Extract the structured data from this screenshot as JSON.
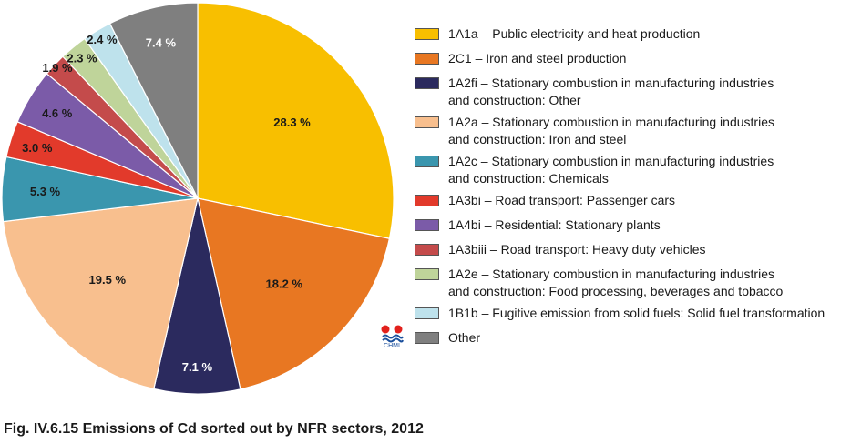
{
  "chart_data": {
    "type": "pie",
    "title": "Fig. IV.6.15  Emissions of Cd sorted out by NFR sectors, 2012",
    "slices": [
      {
        "label_line1": "1A1a – Public electricity and heat production",
        "label_line2": "",
        "value": 28.3,
        "pct_label": "28.3 %",
        "color": "#F8BF00",
        "text_color": "#1a1a1a"
      },
      {
        "label_line1": "2C1 – Iron and steel production",
        "label_line2": "",
        "value": 18.2,
        "pct_label": "18.2 %",
        "color": "#E87722",
        "text_color": "#1a1a1a"
      },
      {
        "label_line1": "1A2fi – Stationary combustion in manufacturing industries",
        "label_line2": "and construction: Other",
        "value": 7.1,
        "pct_label": "7.1 %",
        "color": "#2B2A5E",
        "text_color": "#ffffff"
      },
      {
        "label_line1": "1A2a – Stationary combustion in manufacturing industries",
        "label_line2": "and construction: Iron and steel",
        "value": 19.5,
        "pct_label": "19.5 %",
        "color": "#F8BF8E",
        "text_color": "#1a1a1a"
      },
      {
        "label_line1": "1A2c – Stationary combustion in manufacturing industries",
        "label_line2": "and construction: Chemicals",
        "value": 5.3,
        "pct_label": "5.3 %",
        "color": "#3A96AE",
        "text_color": "#1a1a1a"
      },
      {
        "label_line1": "1A3bi – Road transport: Passenger cars",
        "label_line2": "",
        "value": 3.0,
        "pct_label": "3.0 %",
        "color": "#E23A2B",
        "text_color": "#1a1a1a"
      },
      {
        "label_line1": "1A4bi – Residential: Stationary plants",
        "label_line2": "",
        "value": 4.6,
        "pct_label": "4.6 %",
        "color": "#7B5BA8",
        "text_color": "#1a1a1a"
      },
      {
        "label_line1": "1A3biii – Road transport: Heavy duty vehicles",
        "label_line2": "",
        "value": 1.9,
        "pct_label": "1.9 %",
        "color": "#C44B4B",
        "text_color": "#1a1a1a"
      },
      {
        "label_line1": "1A2e – Stationary combustion in manufacturing industries",
        "label_line2": "and construction: Food processing, beverages and tobacco",
        "value": 2.3,
        "pct_label": "2.3 %",
        "color": "#BFD49A",
        "text_color": "#1a1a1a"
      },
      {
        "label_line1": "1B1b – Fugitive emission from solid fuels: Solid fuel transformation",
        "label_line2": "",
        "value": 2.4,
        "pct_label": "2.4 %",
        "color": "#BEE2EC",
        "text_color": "#1a1a1a"
      },
      {
        "label_line1": "Other",
        "label_line2": "",
        "value": 7.4,
        "pct_label": "7.4 %",
        "color": "#7F7F7F",
        "text_color": "#ffffff"
      }
    ],
    "legend_position": "right"
  },
  "logo": {
    "text": "CHMI",
    "primary_color": "#E2211C",
    "secondary_color": "#1a4f9c"
  }
}
